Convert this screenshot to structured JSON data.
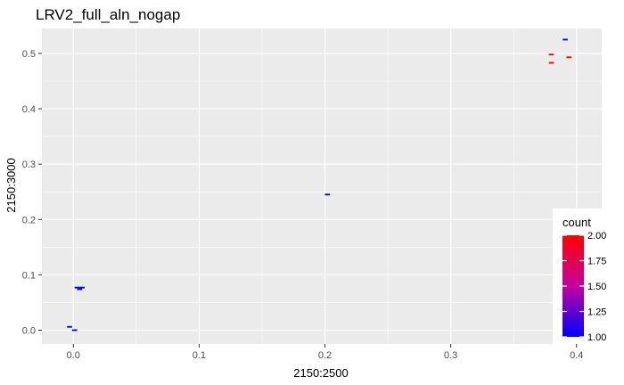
{
  "chart_data": {
    "type": "heatmap",
    "title": "LRV2_full_aln_nogap",
    "xlabel": "2150:2500",
    "ylabel": "2150:3000",
    "xlim": [
      -0.025,
      0.42
    ],
    "ylim": [
      -0.025,
      0.545
    ],
    "xticks": [
      0.0,
      0.1,
      0.2,
      0.3,
      0.4
    ],
    "xtick_labels": [
      "0.0",
      "0.1",
      "0.2",
      "0.3",
      "0.4"
    ],
    "yticks": [
      0.0,
      0.1,
      0.2,
      0.3,
      0.4,
      0.5
    ],
    "ytick_labels": [
      "0.0",
      "0.1",
      "0.2",
      "0.3",
      "0.4",
      "0.5"
    ],
    "grid": true,
    "bin_width": 0.004,
    "bin_height": 0.003,
    "points": [
      {
        "x": -0.003,
        "y": 0.006,
        "count": 1
      },
      {
        "x": 0.001,
        "y": 0.0,
        "count": 1
      },
      {
        "x": 0.003,
        "y": 0.077,
        "count": 1
      },
      {
        "x": 0.007,
        "y": 0.077,
        "count": 1
      },
      {
        "x": 0.005,
        "y": 0.074,
        "count": 1
      },
      {
        "x": 0.202,
        "y": 0.245,
        "count": 1
      },
      {
        "x": 0.38,
        "y": 0.498,
        "count": 2
      },
      {
        "x": 0.38,
        "y": 0.483,
        "count": 2
      },
      {
        "x": 0.394,
        "y": 0.493,
        "count": 2
      },
      {
        "x": 0.391,
        "y": 0.525,
        "count": 1
      }
    ],
    "legend": {
      "title": "count",
      "placement": "right-bottom",
      "low_color": "#0000ff",
      "high_color": "#ff0000",
      "mid_color": "#c4009f",
      "range": [
        1.0,
        2.0
      ],
      "breaks": [
        1.0,
        1.25,
        1.5,
        1.75,
        2.0
      ],
      "break_labels": [
        "1.00",
        "1.25",
        "1.50",
        "1.75",
        "2.00"
      ]
    },
    "panel_color": "#ebebeb",
    "grid_color": "#ffffff"
  }
}
